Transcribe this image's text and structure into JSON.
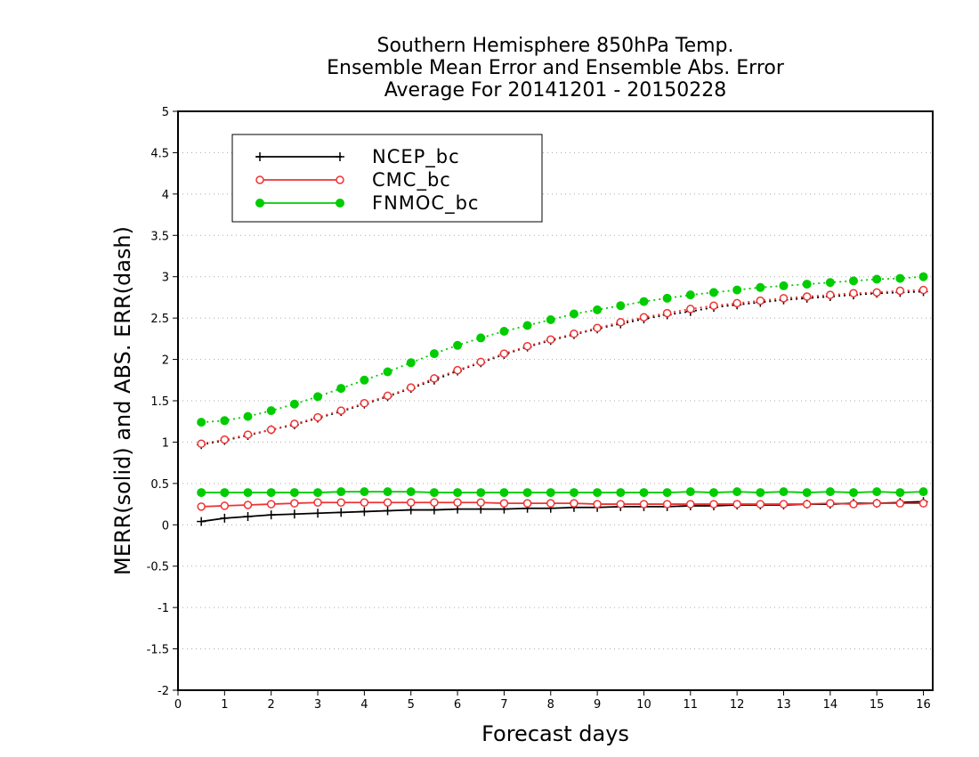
{
  "chart_data": {
    "type": "line",
    "title": [
      "Southern Hemisphere 850hPa Temp.",
      "Ensemble Mean Error and Ensemble Abs. Error",
      "Average For 20141201 - 20150228"
    ],
    "xlabel": "Forecast days",
    "ylabel": "MERR(solid) and ABS. ERR(dash)",
    "xlim": [
      0,
      16.2
    ],
    "ylim": [
      -2,
      5
    ],
    "xticks": [
      0,
      1,
      2,
      3,
      4,
      5,
      6,
      7,
      8,
      9,
      10,
      11,
      12,
      13,
      14,
      15,
      16
    ],
    "yticks": [
      -2,
      -1.5,
      -1,
      -0.5,
      0,
      0.5,
      1,
      1.5,
      2,
      2.5,
      3,
      3.5,
      4,
      4.5,
      5
    ],
    "ytick_labels": [
      "-2",
      "-1.5",
      "-1",
      "-0.5",
      "0",
      "0.5",
      "1",
      "1.5",
      "2",
      "2.5",
      "3",
      "3.5",
      "4",
      "4.5",
      "5"
    ],
    "grid": "horizontal dotted",
    "legend_position": "top-left",
    "x": [
      0.5,
      1,
      1.5,
      2,
      2.5,
      3,
      3.5,
      4,
      4.5,
      5,
      5.5,
      6,
      6.5,
      7,
      7.5,
      8,
      8.5,
      9,
      9.5,
      10,
      10.5,
      11,
      11.5,
      12,
      12.5,
      13,
      13.5,
      14,
      14.5,
      15,
      15.5,
      16
    ],
    "series": [
      {
        "name": "NCEP_bc",
        "color": "#000000",
        "marker": "plus",
        "mean_error": [
          0.04,
          0.08,
          0.1,
          0.12,
          0.13,
          0.14,
          0.15,
          0.16,
          0.17,
          0.18,
          0.18,
          0.19,
          0.19,
          0.19,
          0.2,
          0.2,
          0.21,
          0.21,
          0.22,
          0.22,
          0.22,
          0.23,
          0.23,
          0.24,
          0.24,
          0.24,
          0.25,
          0.25,
          0.26,
          0.26,
          0.27,
          0.28
        ],
        "abs_error": [
          0.97,
          1.02,
          1.08,
          1.15,
          1.21,
          1.29,
          1.37,
          1.46,
          1.55,
          1.65,
          1.75,
          1.86,
          1.96,
          2.06,
          2.15,
          2.23,
          2.3,
          2.37,
          2.43,
          2.49,
          2.54,
          2.58,
          2.63,
          2.66,
          2.69,
          2.72,
          2.74,
          2.76,
          2.78,
          2.8,
          2.81,
          2.82
        ]
      },
      {
        "name": "CMC_bc",
        "color": "#ee3333",
        "marker": "open-circle",
        "mean_error": [
          0.22,
          0.23,
          0.24,
          0.25,
          0.26,
          0.27,
          0.27,
          0.27,
          0.27,
          0.27,
          0.27,
          0.27,
          0.27,
          0.26,
          0.26,
          0.26,
          0.26,
          0.25,
          0.25,
          0.25,
          0.25,
          0.25,
          0.25,
          0.25,
          0.25,
          0.25,
          0.25,
          0.26,
          0.25,
          0.26,
          0.26,
          0.26
        ],
        "abs_error": [
          0.98,
          1.03,
          1.09,
          1.15,
          1.22,
          1.3,
          1.38,
          1.47,
          1.56,
          1.66,
          1.77,
          1.87,
          1.97,
          2.07,
          2.16,
          2.24,
          2.31,
          2.38,
          2.45,
          2.51,
          2.56,
          2.61,
          2.65,
          2.68,
          2.71,
          2.74,
          2.76,
          2.78,
          2.8,
          2.81,
          2.83,
          2.84
        ]
      },
      {
        "name": "FNMOC_bc",
        "color": "#00cc00",
        "marker": "filled-circle",
        "mean_error": [
          0.39,
          0.39,
          0.39,
          0.39,
          0.39,
          0.39,
          0.4,
          0.4,
          0.4,
          0.4,
          0.39,
          0.39,
          0.39,
          0.39,
          0.39,
          0.39,
          0.39,
          0.39,
          0.39,
          0.39,
          0.39,
          0.4,
          0.39,
          0.4,
          0.39,
          0.4,
          0.39,
          0.4,
          0.39,
          0.4,
          0.39,
          0.4
        ],
        "abs_error": [
          1.24,
          1.26,
          1.31,
          1.38,
          1.46,
          1.55,
          1.65,
          1.75,
          1.85,
          1.96,
          2.07,
          2.17,
          2.26,
          2.34,
          2.41,
          2.48,
          2.55,
          2.6,
          2.65,
          2.7,
          2.74,
          2.78,
          2.81,
          2.84,
          2.87,
          2.89,
          2.91,
          2.93,
          2.95,
          2.97,
          2.98,
          3.0
        ]
      }
    ]
  }
}
